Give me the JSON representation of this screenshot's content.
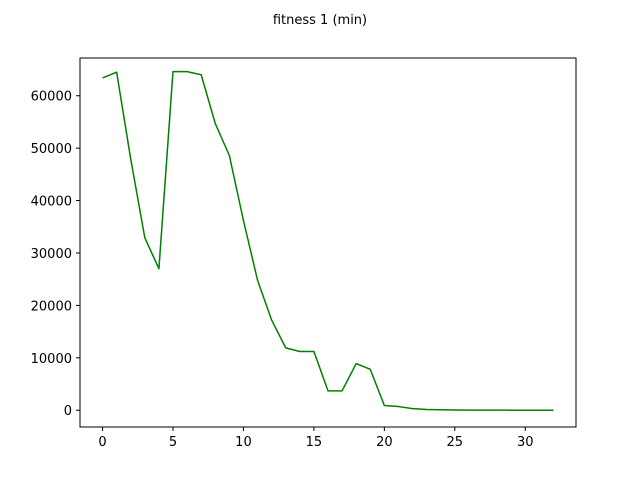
{
  "chart_data": {
    "type": "line",
    "title": "fitness 1 (min)",
    "xlabel": "",
    "ylabel": "",
    "xlim": [
      -1.6,
      33.6
    ],
    "ylim": [
      -3200,
      67200
    ],
    "xticks": [
      0,
      5,
      10,
      15,
      20,
      25,
      30
    ],
    "yticks": [
      0,
      10000,
      20000,
      30000,
      40000,
      50000,
      60000
    ],
    "grid": false,
    "series": [
      {
        "color": "#008000",
        "x": [
          0,
          1,
          2,
          3,
          4,
          5,
          6,
          7,
          8,
          9,
          10,
          11,
          12,
          13,
          14,
          15,
          16,
          17,
          18,
          19,
          20,
          21,
          22,
          23,
          24,
          25,
          26,
          27,
          28,
          29,
          30,
          31,
          32
        ],
        "y": [
          63400,
          64500,
          47900,
          32900,
          27000,
          64600,
          64600,
          64000,
          54700,
          48600,
          36200,
          24800,
          17200,
          11900,
          11200,
          11200,
          3700,
          3700,
          8900,
          7800,
          900,
          700,
          300,
          150,
          80,
          40,
          20,
          15,
          10,
          8,
          5,
          5,
          5
        ]
      }
    ]
  }
}
